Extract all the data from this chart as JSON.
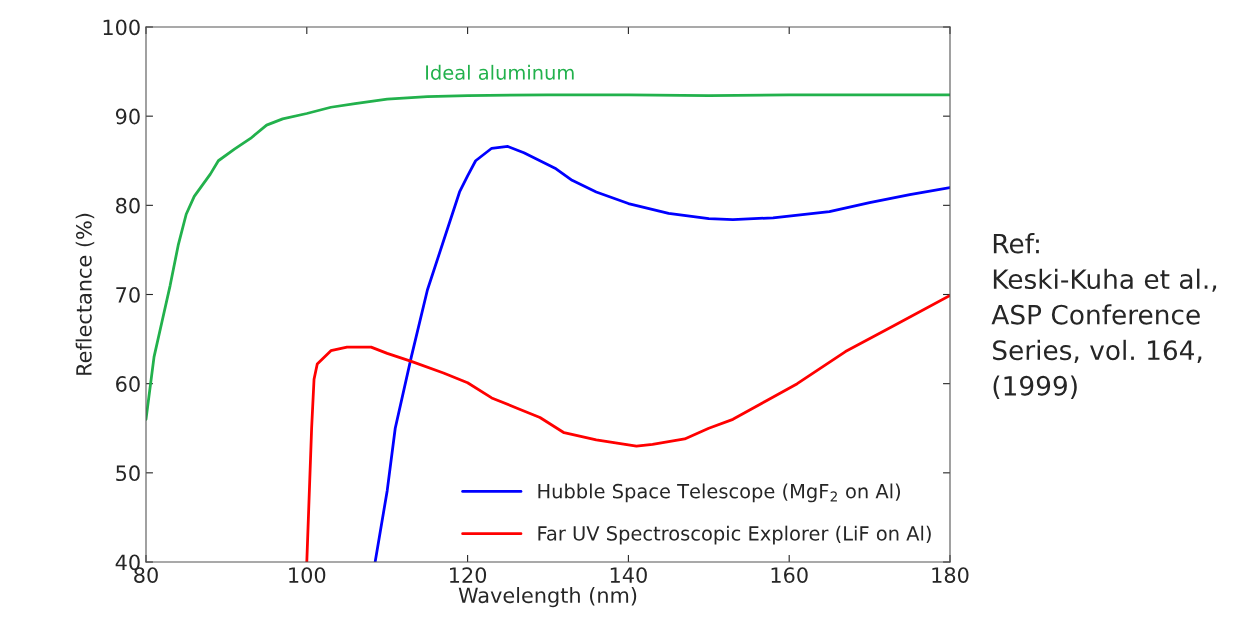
{
  "chart_data": {
    "type": "line",
    "xlabel": "Wavelength (nm)",
    "ylabel": "Reflectance (%)",
    "xlim": [
      80,
      180
    ],
    "xticks": [
      80,
      100,
      120,
      140,
      160,
      180
    ],
    "ylim": [
      40,
      100
    ],
    "yticks": [
      40,
      50,
      60,
      70,
      80,
      90,
      100
    ],
    "grid": false,
    "legend": "bottom right",
    "line_style": "solid",
    "marker": "none",
    "series": [
      {
        "color": "#22b14c",
        "x": [
          80,
          81,
          82,
          83,
          84,
          85,
          86,
          88,
          89,
          91,
          93,
          95,
          97,
          100,
          103,
          106,
          110,
          115,
          120,
          130,
          140,
          150,
          160,
          170,
          180
        ],
        "values": [
          56,
          63,
          67,
          71,
          75.5,
          79,
          81,
          83.5,
          85,
          86.3,
          87.5,
          89,
          89.7,
          90.3,
          91,
          91.4,
          91.9,
          92.2,
          92.3,
          92.4,
          92.4,
          92.3,
          92.4,
          92.4,
          92.4
        ]
      },
      {
        "name": "Hubble Space Telescope (MgF$_{2}$ on Al)",
        "color": "#0000ff",
        "x": [
          108.5,
          110,
          111,
          113,
          115,
          117,
          119,
          120,
          121,
          123,
          125,
          127,
          129,
          131,
          133,
          136,
          140,
          145,
          150,
          153,
          158,
          165,
          170,
          175,
          180
        ],
        "values": [
          40,
          48,
          55,
          63,
          70.5,
          76,
          81.5,
          83.3,
          85,
          86.4,
          86.6,
          85.9,
          85,
          84.1,
          82.8,
          81.5,
          80.2,
          79.1,
          78.5,
          78.4,
          78.6,
          79.3,
          80.3,
          81.2,
          82
        ]
      },
      {
        "name": "Far UV Spectroscopic Explorer (LiF on Al)",
        "color": "#ff0000",
        "x": [
          100,
          100.6,
          100.9,
          101.3,
          103,
          105,
          107,
          108,
          110,
          113,
          117,
          120,
          123,
          126,
          129,
          132,
          136,
          141,
          143,
          147,
          150,
          153,
          157,
          161,
          167,
          173,
          180
        ],
        "values": [
          40,
          55,
          60.5,
          62.2,
          63.7,
          64.1,
          64.1,
          64.1,
          63.4,
          62.5,
          61.2,
          60.1,
          58.4,
          57.3,
          56.2,
          54.5,
          53.7,
          53,
          53.2,
          53.8,
          55,
          56,
          58,
          60,
          63.6,
          66.5,
          69.9
        ]
      }
    ],
    "annotations": [
      {
        "text": "Ideal aluminum",
        "x": 124,
        "y": 92.4
      },
      "Ref:\nKeski-Kuha et al.,\nASP Conference\nSeries, vol. 164,\n(1999)"
    ]
  }
}
